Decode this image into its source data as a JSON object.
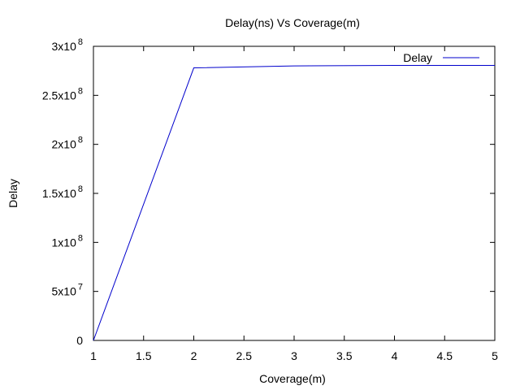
{
  "chart_data": {
    "type": "line",
    "title": "Delay(ns) Vs Coverage(m)",
    "xlabel": "Coverage(m)",
    "ylabel": "Delay",
    "xlim": [
      1,
      5
    ],
    "ylim": [
      0,
      300000000
    ],
    "grid": false,
    "legend_position": "top-right",
    "x_ticks": [
      {
        "value": 1,
        "label": "1"
      },
      {
        "value": 1.5,
        "label": "1.5"
      },
      {
        "value": 2,
        "label": "2"
      },
      {
        "value": 2.5,
        "label": "2.5"
      },
      {
        "value": 3,
        "label": "3"
      },
      {
        "value": 3.5,
        "label": "3.5"
      },
      {
        "value": 4,
        "label": "4"
      },
      {
        "value": 4.5,
        "label": "4.5"
      },
      {
        "value": 5,
        "label": "5"
      }
    ],
    "y_ticks": [
      {
        "value": 0,
        "mantissa": "0",
        "exponent": ""
      },
      {
        "value": 50000000,
        "mantissa": "5x10",
        "exponent": "7"
      },
      {
        "value": 100000000,
        "mantissa": "1x10",
        "exponent": "8"
      },
      {
        "value": 150000000,
        "mantissa": "1.5x10",
        "exponent": "8"
      },
      {
        "value": 200000000,
        "mantissa": "2x10",
        "exponent": "8"
      },
      {
        "value": 250000000,
        "mantissa": "2.5x10",
        "exponent": "8"
      },
      {
        "value": 300000000,
        "mantissa": "3x10",
        "exponent": "8"
      }
    ],
    "series": [
      {
        "name": "Delay",
        "color": "#0000cc",
        "x": [
          1,
          2,
          3,
          4,
          5
        ],
        "y": [
          0,
          278000000,
          280000000,
          280500000,
          280500000
        ]
      }
    ]
  }
}
